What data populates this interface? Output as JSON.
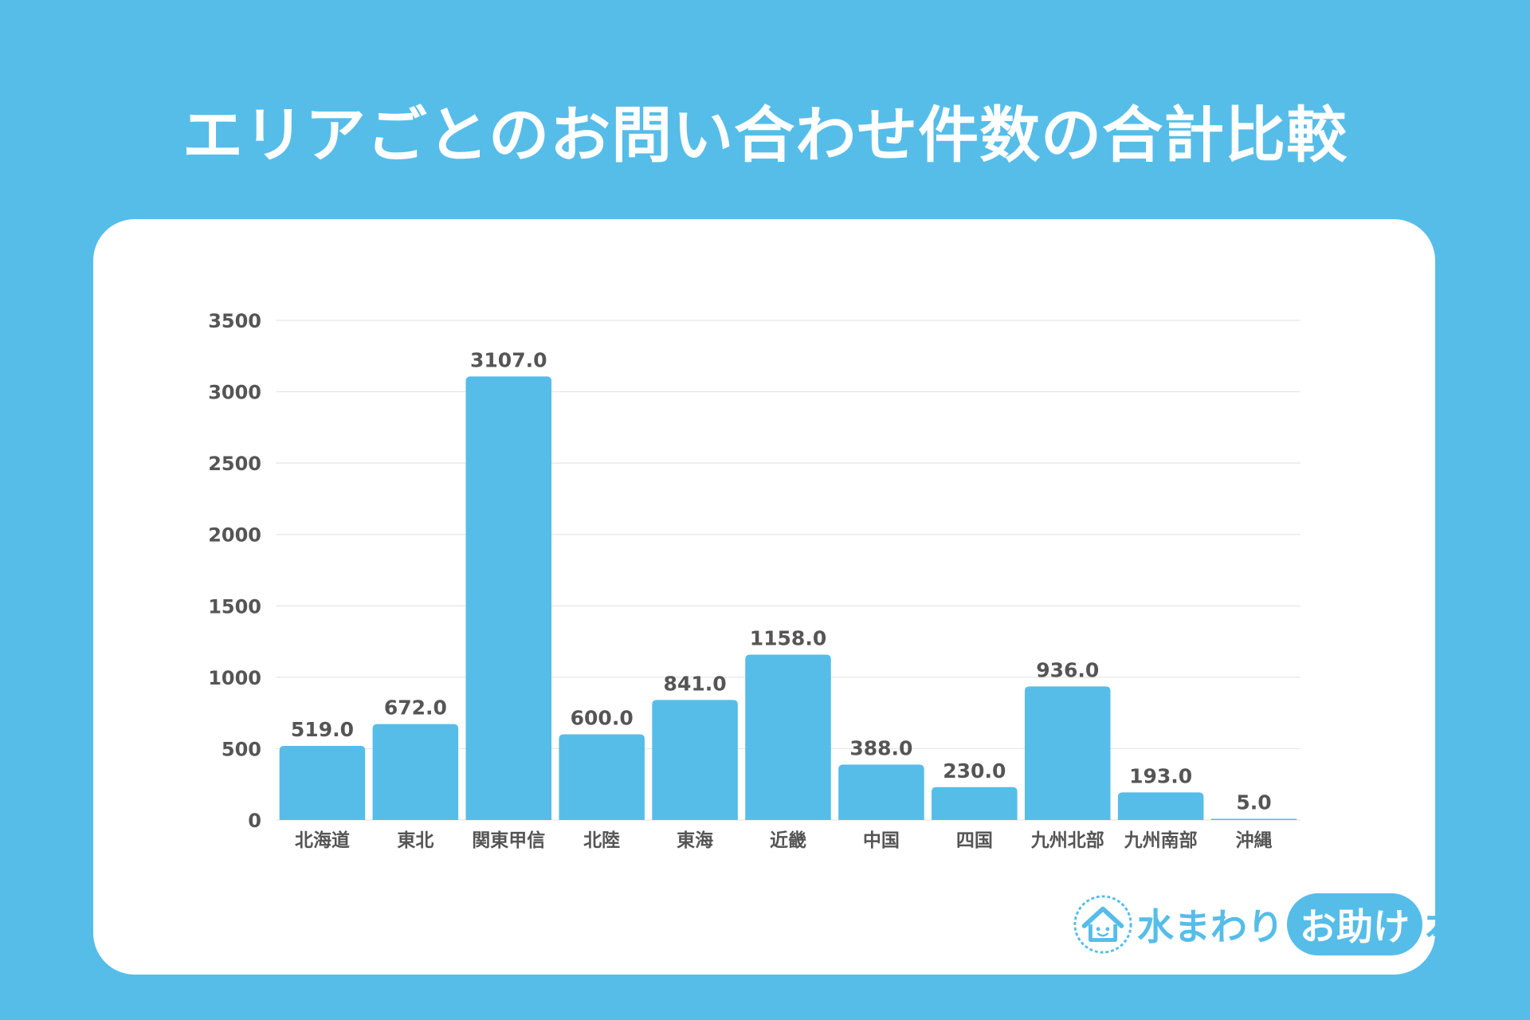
{
  "title": "エリアごとのお問い合わせ件数の合計比較",
  "colors": {
    "background": "#56bde9",
    "bar": "#56bde9",
    "card": "#ffffff",
    "text": "#555555",
    "grid": "#e6e6e6"
  },
  "chart_data": {
    "type": "bar",
    "title": "エリアごとのお問い合わせ件数の合計比較",
    "categories": [
      "北海道",
      "東北",
      "関東甲信",
      "北陸",
      "東海",
      "近畿",
      "中国",
      "四国",
      "九州北部",
      "九州南部",
      "沖縄"
    ],
    "values": [
      519.0,
      672.0,
      3107.0,
      600.0,
      841.0,
      1158.0,
      388.0,
      230.0,
      936.0,
      193.0,
      5.0
    ],
    "value_labels": [
      "519.0",
      "672.0",
      "3107.0",
      "600.0",
      "841.0",
      "1158.0",
      "388.0",
      "230.0",
      "936.0",
      "193.0",
      "5.0"
    ],
    "yticks": [
      0,
      500,
      1000,
      1500,
      2000,
      2500,
      3000,
      3500
    ],
    "ylim": [
      0,
      3500
    ],
    "xlabel": "",
    "ylabel": "",
    "grid": true,
    "legend": "none"
  },
  "logo": {
    "icon": "house-icon",
    "text_before": "水まわり",
    "text_bubble": "お助け",
    "text_after": "本舗"
  }
}
